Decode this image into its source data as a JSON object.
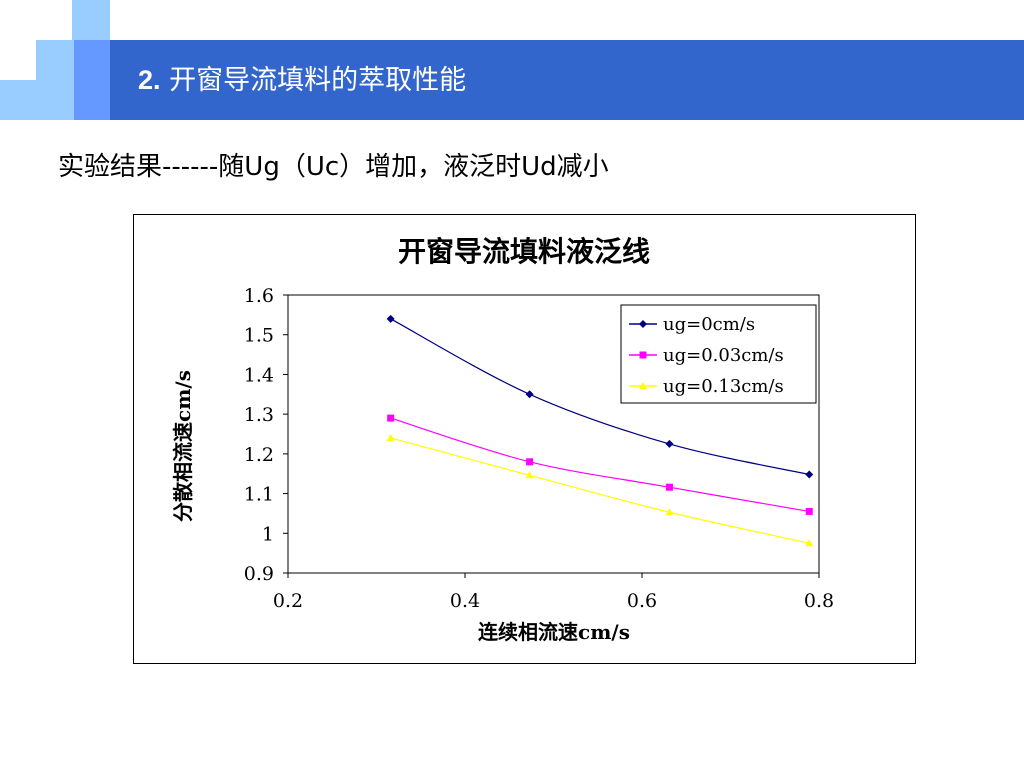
{
  "slide": {
    "title_num": "2.",
    "title_text": " 开窗导流填料的萃取性能",
    "subtitle": "实验结果------随Ug（Uc）增加，液泛时Ud减小"
  },
  "colors": {
    "header": "#3366cc",
    "square_light": "#99ccff",
    "square_mid": "#6699ff"
  },
  "chart_data": {
    "type": "line",
    "title": "开窗导流填料液泛线",
    "xlabel": "连续相流速cm/s",
    "ylabel": "分散相流速cm/s",
    "xlim": [
      0.2,
      0.8
    ],
    "ylim": [
      0.9,
      1.6
    ],
    "xticks": [
      "0.2",
      "0.4",
      "0.6",
      "0.8"
    ],
    "yticks": [
      "0.9",
      "1",
      "1.1",
      "1.2",
      "1.3",
      "1.4",
      "1.5",
      "1.6"
    ],
    "x": [
      0.316,
      0.473,
      0.631,
      0.789
    ],
    "legend_position": "top-right",
    "grid": false,
    "series": [
      {
        "name": "ug=0cm/s",
        "values": [
          1.54,
          1.35,
          1.225,
          1.148
        ],
        "color": "#000080",
        "marker": "diamond"
      },
      {
        "name": "ug=0.03cm/s",
        "values": [
          1.29,
          1.18,
          1.116,
          1.055
        ],
        "color": "#ff00ff",
        "marker": "square"
      },
      {
        "name": "ug=0.13cm/s",
        "values": [
          1.24,
          1.146,
          1.053,
          0.975
        ],
        "color": "#ffff00",
        "marker": "triangle"
      }
    ]
  }
}
